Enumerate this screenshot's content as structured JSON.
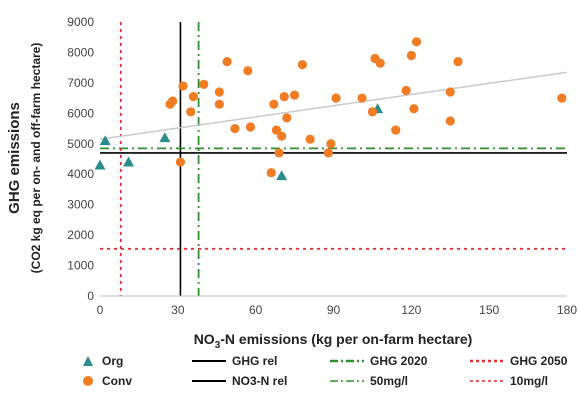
{
  "chart_data": {
    "type": "scatter",
    "ylabel_main": "GHG emissions",
    "ylabel_sub": "(CO2 kg eq per on- and off-farm hectare)",
    "xlabel_prefix": "NO",
    "xlabel_sub": "3",
    "xlabel_suffix": "-N emissions (kg per on-farm hectare)",
    "xlim": [
      0,
      180
    ],
    "ylim": [
      0,
      9000
    ],
    "xticks": [
      0,
      30,
      60,
      90,
      120,
      150,
      180
    ],
    "yticks": [
      0,
      1000,
      2000,
      3000,
      4000,
      5000,
      6000,
      7000,
      8000,
      9000
    ],
    "grid": false,
    "legend_position": "bottom",
    "series": [
      {
        "name": "Org",
        "marker": "triangle",
        "color": "#2a8c8c",
        "points": [
          [
            0,
            4300
          ],
          [
            2,
            5100
          ],
          [
            11,
            4400
          ],
          [
            25,
            5200
          ],
          [
            70,
            3950
          ],
          [
            107,
            6150
          ]
        ]
      },
      {
        "name": "Conv",
        "marker": "circle",
        "color": "#f07c24",
        "points": [
          [
            27,
            6300
          ],
          [
            28,
            6400
          ],
          [
            31,
            4400
          ],
          [
            32,
            6900
          ],
          [
            35,
            6050
          ],
          [
            36,
            6550
          ],
          [
            40,
            6950
          ],
          [
            46,
            6300
          ],
          [
            46,
            6700
          ],
          [
            49,
            7700
          ],
          [
            52,
            5500
          ],
          [
            57,
            7400
          ],
          [
            58,
            5550
          ],
          [
            66,
            4050
          ],
          [
            67,
            6300
          ],
          [
            68,
            5450
          ],
          [
            69,
            4700
          ],
          [
            70,
            5250
          ],
          [
            71,
            6550
          ],
          [
            72,
            5850
          ],
          [
            75,
            6600
          ],
          [
            78,
            7600
          ],
          [
            81,
            5150
          ],
          [
            88,
            4700
          ],
          [
            89,
            5000
          ],
          [
            91,
            6500
          ],
          [
            101,
            6500
          ],
          [
            105,
            6050
          ],
          [
            106,
            7800
          ],
          [
            108,
            7650
          ],
          [
            114,
            5450
          ],
          [
            118,
            6750
          ],
          [
            120,
            7900
          ],
          [
            121,
            6150
          ],
          [
            122,
            8350
          ],
          [
            135,
            6700
          ],
          [
            135,
            5750
          ],
          [
            138,
            7700
          ],
          [
            178,
            6500
          ]
        ]
      }
    ],
    "trendline": {
      "x": [
        0,
        180
      ],
      "y": [
        5150,
        7350
      ],
      "color": "#c9c9c9"
    },
    "reference_lines": [
      {
        "name": "GHG rel",
        "orientation": "h",
        "value": 4700,
        "color": "#000000",
        "style": "solid"
      },
      {
        "name": "NO3-N rel",
        "orientation": "v",
        "value": 31,
        "color": "#000000",
        "style": "solid"
      },
      {
        "name": "GHG 2020",
        "orientation": "h",
        "value": 4850,
        "color": "#2f8f2f",
        "style": "dashdot"
      },
      {
        "name": "50mg/l",
        "orientation": "v",
        "value": 38,
        "color": "#2f8f2f",
        "style": "dashdot"
      },
      {
        "name": "GHG 2050",
        "orientation": "h",
        "value": 1550,
        "color": "#e03030",
        "style": "dotted"
      },
      {
        "name": "10mg/l",
        "orientation": "v",
        "value": 8,
        "color": "#e03030",
        "style": "dotted"
      }
    ]
  },
  "legend": [
    {
      "label": "Org",
      "kind": "triangle",
      "color": "#2a8c8c"
    },
    {
      "label": "Conv",
      "kind": "circle",
      "color": "#f07c24"
    },
    {
      "label": "GHG rel",
      "kind": "solid",
      "color": "#000000"
    },
    {
      "label": "NO3-N rel",
      "kind": "solid",
      "color": "#000000"
    },
    {
      "label": "GHG 2020",
      "kind": "dashdot-bold",
      "color": "#2f8f2f"
    },
    {
      "label": "50mg/l",
      "kind": "dashdot",
      "color": "#2f8f2f"
    },
    {
      "label": "GHG 2050",
      "kind": "dotted-bold",
      "color": "#e03030"
    },
    {
      "label": "10mg/l",
      "kind": "dotted",
      "color": "#e03030"
    }
  ]
}
